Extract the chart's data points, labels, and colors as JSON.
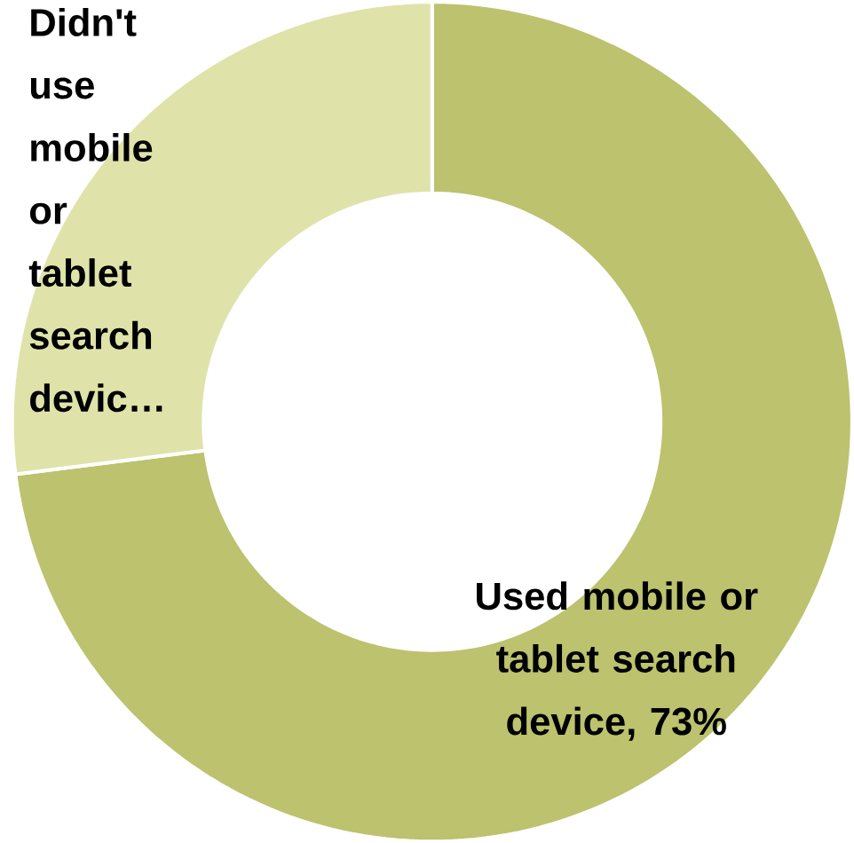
{
  "chart_data": {
    "type": "donut",
    "categories": [
      "Used mobile or tablet search device, 73%",
      "Didn't use mobile or tablet search devic…"
    ],
    "values": [
      73,
      27
    ],
    "colors": [
      "#bcc26e",
      "#dfe3aa"
    ]
  }
}
